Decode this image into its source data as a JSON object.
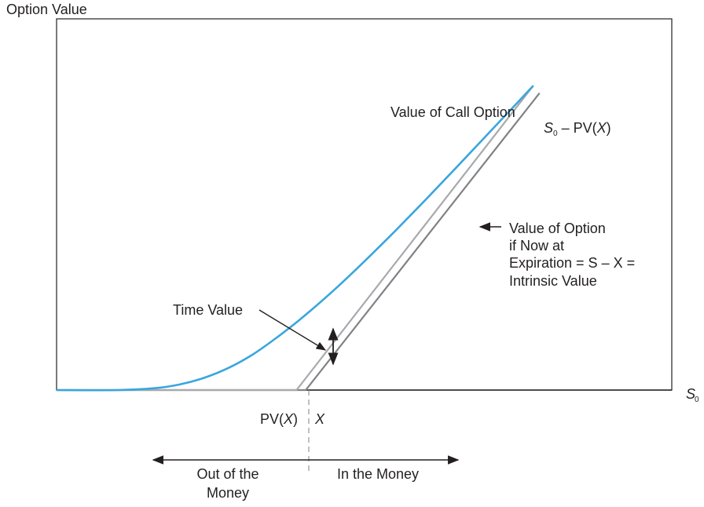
{
  "chart_data": {
    "type": "line",
    "title": "",
    "ylabel": "Option Value",
    "xlabel": "S",
    "xlabel_sub": "0",
    "xlim": [
      0,
      100
    ],
    "ylim": [
      0,
      100
    ],
    "grid": false,
    "x_ticks": {
      "pv_x": {
        "pv": "PV(",
        "x": "X",
        "close": ")"
      },
      "x": "X"
    },
    "key_points": {
      "pv_x": 39.0,
      "x": 40.5
    },
    "series": [
      {
        "name": "Value of Call Option",
        "color": "#3aa6dd",
        "x": [
          0,
          10,
          16,
          20,
          24,
          28,
          32,
          36,
          40,
          45,
          50,
          55,
          60,
          65,
          70,
          75,
          77.5
        ],
        "y": [
          0,
          0,
          0.5,
          1.5,
          3.3,
          6.0,
          9.7,
          14.4,
          19.6,
          26.8,
          34.6,
          42.8,
          51.3,
          60.0,
          68.8,
          77.6,
          82.0
        ]
      },
      {
        "name": "S0 – PV(X)",
        "color": "#a7a9ac",
        "label_parts": {
          "s": "S",
          "sub": "0",
          "rest": " – PV(",
          "x": "X",
          "close": ")"
        },
        "x": [
          0,
          39.0,
          77.5
        ],
        "y": [
          0,
          0,
          82.0
        ]
      },
      {
        "name": "Value of Option if Now at Expiration = S – X = Intrinsic Value",
        "color": "#808285",
        "label_lines": [
          "Value of Option",
          "if Now at",
          "Expiration = S – X =",
          "Intrinsic Value"
        ],
        "x": [
          0,
          40.5,
          78.5
        ],
        "y": [
          0,
          0,
          80.0
        ]
      }
    ],
    "annotations": {
      "time_value": "Time Value",
      "out_of_money": [
        "Out of the",
        "Money"
      ],
      "in_money": "In the Money"
    }
  }
}
